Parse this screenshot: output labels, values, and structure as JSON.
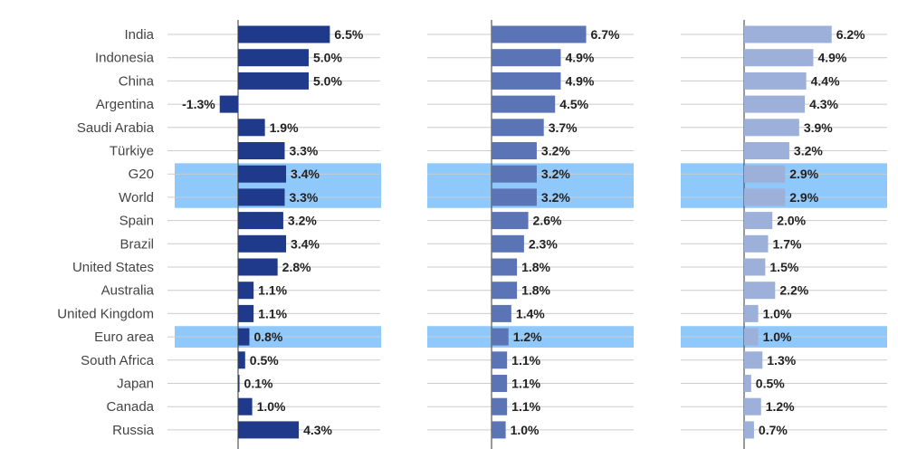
{
  "chart_data": {
    "type": "bar",
    "orientation": "horizontal",
    "categories": [
      "India",
      "Indonesia",
      "China",
      "Argentina",
      "Saudi Arabia",
      "Türkiye",
      "G20",
      "World",
      "Spain",
      "Brazil",
      "United States",
      "Australia",
      "United Kingdom",
      "Euro area",
      "South Africa",
      "Japan",
      "Canada",
      "Russia"
    ],
    "highlighted": [
      "G20",
      "World",
      "Euro area"
    ],
    "series": [
      {
        "color": "#1f3a8a",
        "values": [
          6.5,
          5.0,
          5.0,
          -1.3,
          1.9,
          3.3,
          3.4,
          3.3,
          3.2,
          3.4,
          2.8,
          1.1,
          1.1,
          0.8,
          0.5,
          0.1,
          1.0,
          4.3
        ],
        "labels": [
          "6.5%",
          "5.0%",
          "5.0%",
          "-1.3%",
          "1.9%",
          "3.3%",
          "3.4%",
          "3.3%",
          "3.2%",
          "3.4%",
          "2.8%",
          "1.1%",
          "1.1%",
          "0.8%",
          "0.5%",
          "0.1%",
          "1.0%",
          "4.3%"
        ]
      },
      {
        "color": "#5a74b6",
        "values": [
          6.7,
          4.9,
          4.9,
          4.5,
          3.7,
          3.2,
          3.2,
          3.2,
          2.6,
          2.3,
          1.8,
          1.8,
          1.4,
          1.2,
          1.1,
          1.1,
          1.1,
          1.0
        ],
        "labels": [
          "6.7%",
          "4.9%",
          "4.9%",
          "4.5%",
          "3.7%",
          "3.2%",
          "3.2%",
          "3.2%",
          "2.6%",
          "2.3%",
          "1.8%",
          "1.8%",
          "1.4%",
          "1.2%",
          "1.1%",
          "1.1%",
          "1.1%",
          "1.0%"
        ]
      },
      {
        "color": "#9db0d9",
        "values": [
          6.2,
          4.9,
          4.4,
          4.3,
          3.9,
          3.2,
          2.9,
          2.9,
          2.0,
          1.7,
          1.5,
          2.2,
          1.0,
          1.0,
          1.3,
          0.5,
          1.2,
          0.7
        ],
        "labels": [
          "6.2%",
          "4.9%",
          "4.4%",
          "4.3%",
          "3.9%",
          "3.2%",
          "2.9%",
          "2.9%",
          "2.0%",
          "1.7%",
          "1.5%",
          "2.2%",
          "1.0%",
          "1.0%",
          "1.3%",
          "0.5%",
          "1.2%",
          "0.7%"
        ]
      }
    ],
    "colors": {
      "highlight": "#8fc8fb",
      "gridline": "#cccccc",
      "axis": "#555555"
    }
  }
}
